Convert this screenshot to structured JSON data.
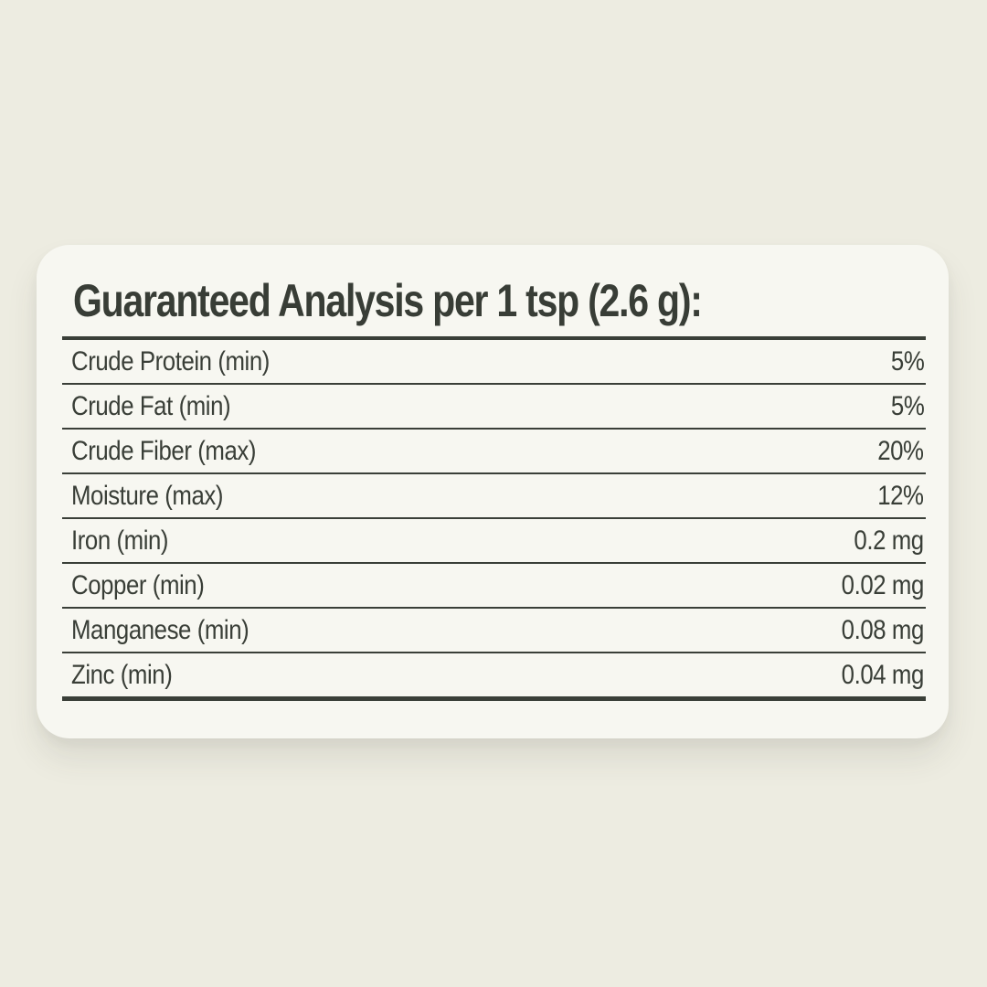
{
  "page": {
    "background_color": "#EDECE1",
    "card_background_color": "#F7F7F1",
    "text_color": "#393E37",
    "rule_color": "#3A3F38"
  },
  "label": {
    "title": "Guaranteed Analysis per 1 tsp (2.6 g):",
    "rows": [
      {
        "name": "Crude Protein (min)",
        "value": "5%"
      },
      {
        "name": "Crude Fat (min)",
        "value": "5%"
      },
      {
        "name": "Crude Fiber (max)",
        "value": "20%"
      },
      {
        "name": "Moisture (max)",
        "value": "12%"
      },
      {
        "name": "Iron (min)",
        "value": "0.2 mg"
      },
      {
        "name": "Copper (min)",
        "value": "0.02 mg"
      },
      {
        "name": "Manganese (min)",
        "value": "0.08 mg"
      },
      {
        "name": "Zinc (min)",
        "value": "0.04 mg"
      }
    ]
  }
}
